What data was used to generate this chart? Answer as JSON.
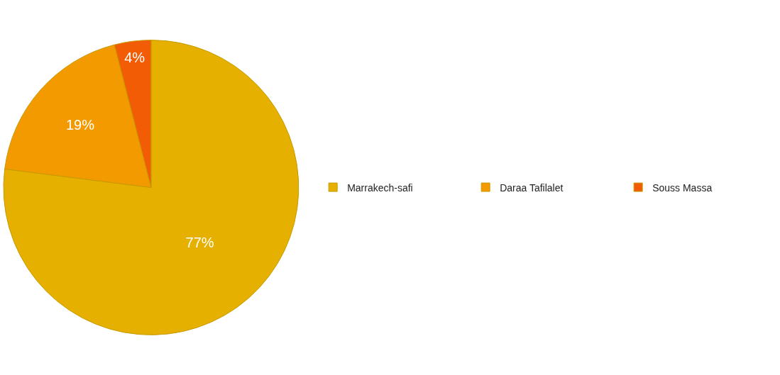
{
  "chart_data": {
    "type": "pie",
    "categories": [
      "Marrakech-safi",
      "Daraa Tafilalet",
      "Souss Massa"
    ],
    "values": [
      77,
      19,
      4
    ],
    "value_labels": [
      "77%",
      "19%",
      "4%"
    ],
    "colors": [
      "#e6b000",
      "#f39a00",
      "#f25c05"
    ],
    "legend": "right"
  }
}
